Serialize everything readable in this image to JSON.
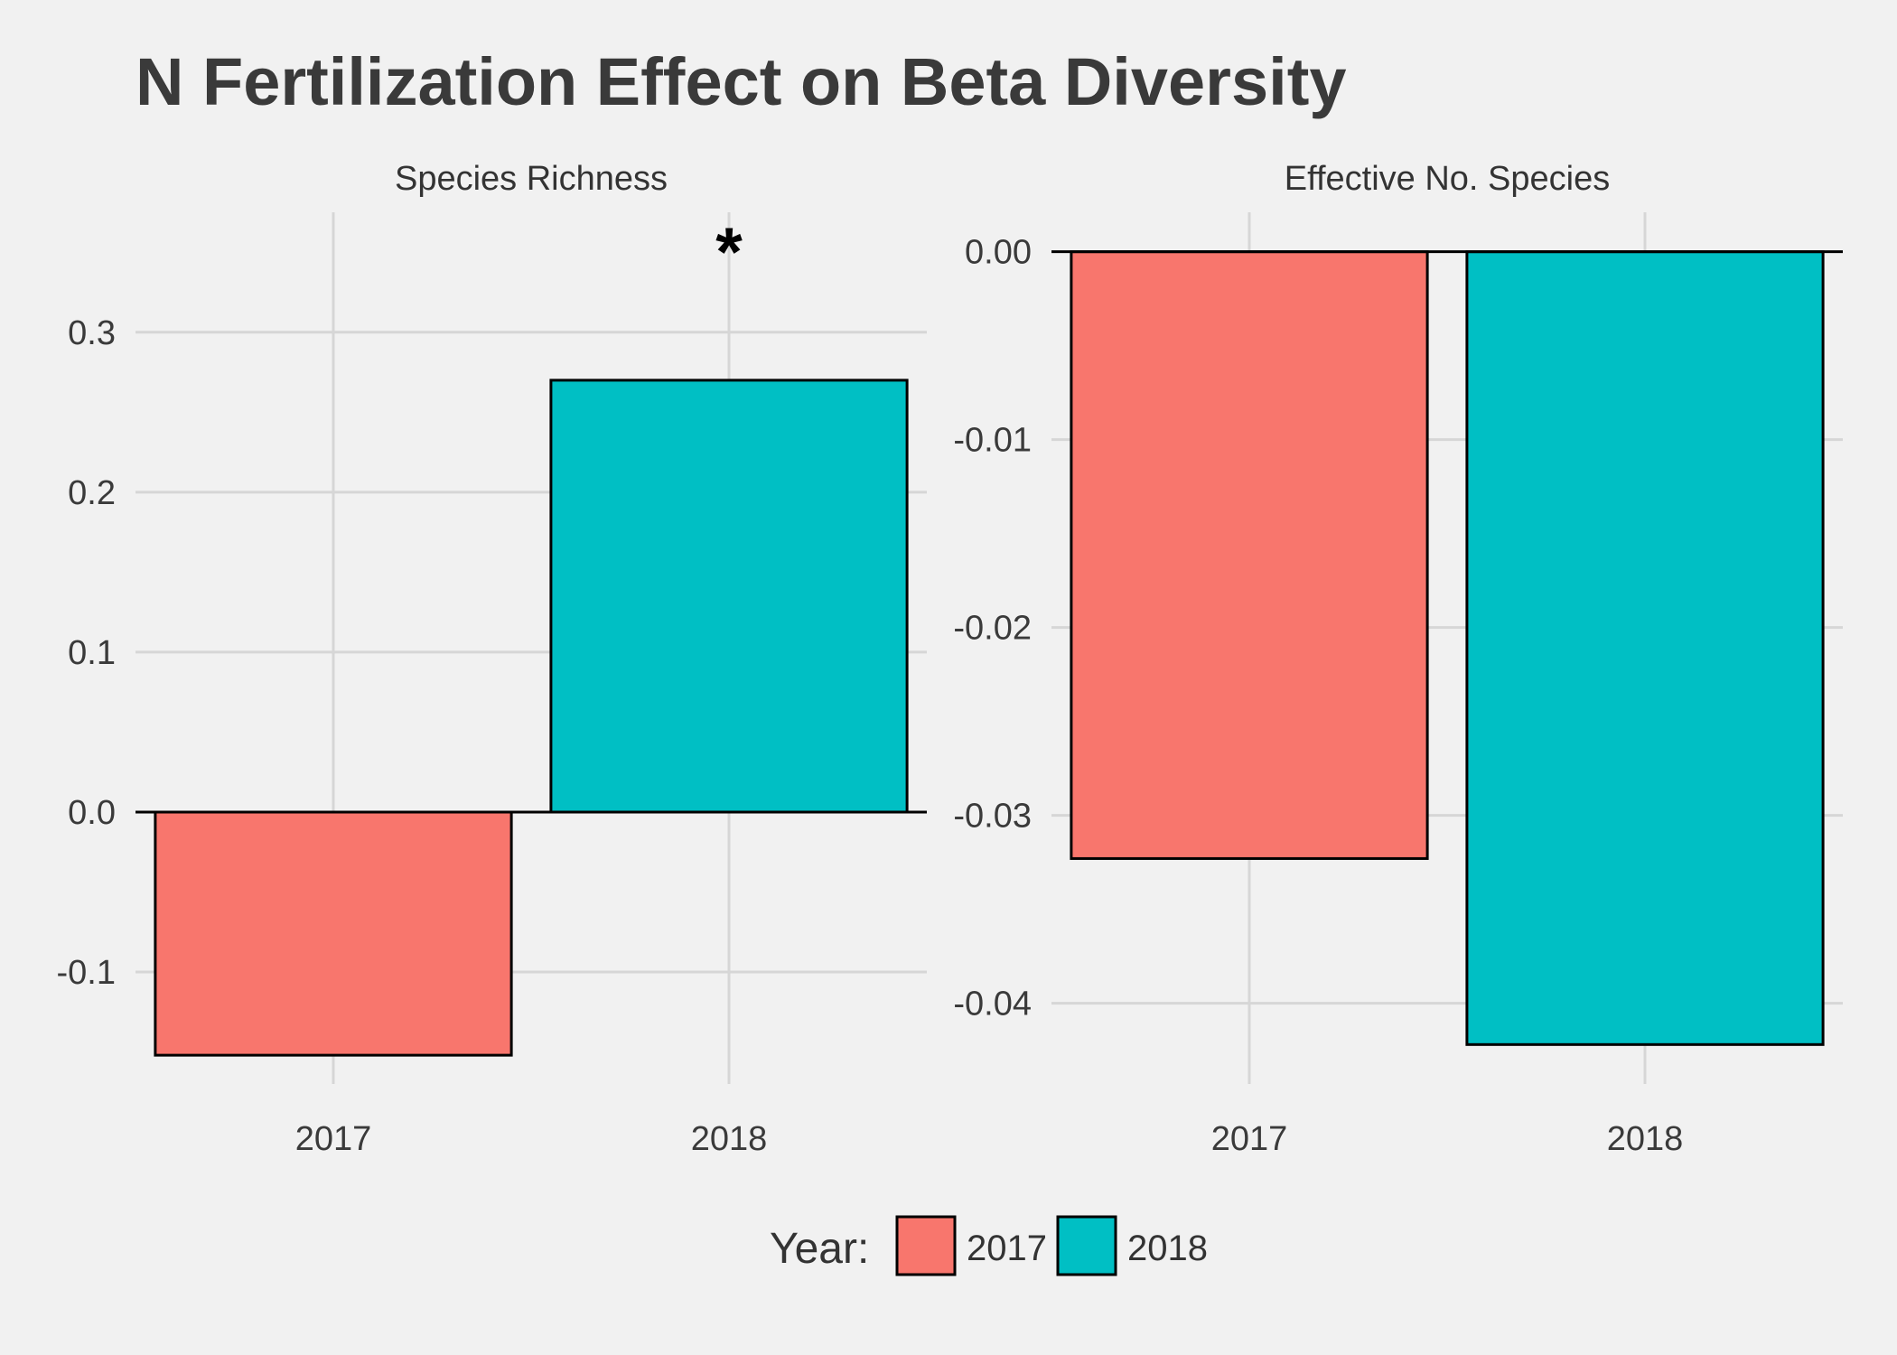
{
  "title": "N Fertilization Effect on Beta Diversity",
  "colors": {
    "2017": "#F8766D",
    "2018": "#00BFC4"
  },
  "legend": {
    "title": "Year:",
    "position": "bottom",
    "items": [
      {
        "label": "2017",
        "color": "#F8766D"
      },
      {
        "label": "2018",
        "color": "#00BFC4"
      }
    ]
  },
  "chart_data": [
    {
      "type": "bar",
      "panel_title": "Species Richness",
      "categories": [
        "2017",
        "2018"
      ],
      "values": [
        -0.152,
        0.27
      ],
      "annotations": [
        "",
        "*"
      ],
      "ylim": [
        -0.17,
        0.375
      ],
      "yticks": [
        -0.1,
        0.0,
        0.1,
        0.2,
        0.3
      ],
      "ytick_labels": [
        "-0.1",
        "0.0",
        "0.1",
        "0.2",
        "0.3"
      ],
      "grid": true
    },
    {
      "type": "bar",
      "panel_title": "Effective No. Species",
      "categories": [
        "2017",
        "2018"
      ],
      "values": [
        -0.0323,
        -0.0422
      ],
      "annotations": [
        "",
        ""
      ],
      "ylim": [
        -0.0443,
        0.0021
      ],
      "yticks": [
        -0.04,
        -0.03,
        -0.02,
        -0.01,
        0.0
      ],
      "ytick_labels": [
        "-0.04",
        "-0.03",
        "-0.02",
        "-0.01",
        "0.00"
      ],
      "grid": true
    }
  ]
}
